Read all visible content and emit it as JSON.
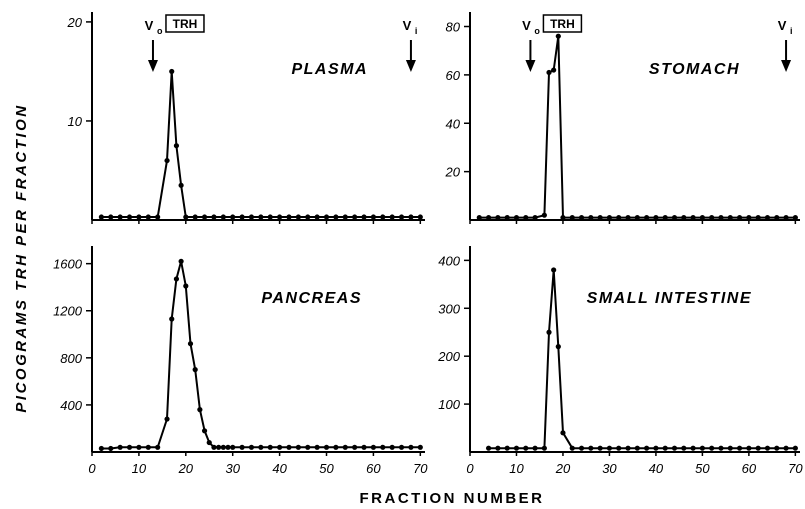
{
  "figure": {
    "ylabel": "PICOGRAMS TRH PER FRACTION",
    "xlabel": "FRACTION NUMBER"
  },
  "markers": {
    "vo_main": "V",
    "vo_sub": "o",
    "vi_main": "V",
    "vi_sub": "i",
    "trh_box": "TRH"
  },
  "chart_data": [
    {
      "type": "line",
      "title": "PLASMA",
      "xlim": [
        0,
        71
      ],
      "ylim": [
        0,
        21
      ],
      "xticks": [],
      "yticks": [
        10,
        20
      ],
      "markers": {
        "vo_x": 13,
        "vi_x": 68,
        "trh_box": true
      },
      "series": [
        {
          "x": [
            2,
            4,
            6,
            8,
            10,
            12,
            14,
            16,
            17,
            18,
            19,
            20,
            22,
            24,
            26,
            28,
            30,
            32,
            34,
            36,
            38,
            40,
            42,
            44,
            46,
            48,
            50,
            52,
            54,
            56,
            58,
            60,
            62,
            64,
            66,
            68,
            70
          ],
          "y": [
            0.3,
            0.3,
            0.3,
            0.3,
            0.3,
            0.3,
            0.3,
            6,
            15,
            7.5,
            3.5,
            0.3,
            0.3,
            0.3,
            0.3,
            0.3,
            0.3,
            0.3,
            0.3,
            0.3,
            0.3,
            0.3,
            0.3,
            0.3,
            0.3,
            0.3,
            0.3,
            0.3,
            0.3,
            0.3,
            0.3,
            0.3,
            0.3,
            0.3,
            0.3,
            0.3,
            0.3
          ]
        }
      ]
    },
    {
      "type": "line",
      "title": "STOMACH",
      "xlim": [
        0,
        71
      ],
      "ylim": [
        0,
        86
      ],
      "xticks": [],
      "yticks": [
        20,
        40,
        60,
        80
      ],
      "markers": {
        "vo_x": 13,
        "vi_x": 68,
        "trh_box": true
      },
      "series": [
        {
          "x": [
            2,
            4,
            6,
            8,
            10,
            12,
            14,
            16,
            17,
            18,
            19,
            20,
            22,
            24,
            26,
            28,
            30,
            32,
            34,
            36,
            38,
            40,
            42,
            44,
            46,
            48,
            50,
            52,
            54,
            56,
            58,
            60,
            62,
            64,
            66,
            68,
            70
          ],
          "y": [
            1,
            1,
            1,
            1,
            1,
            1,
            1,
            2,
            61,
            62,
            76,
            1,
            1,
            1,
            1,
            1,
            1,
            1,
            1,
            1,
            1,
            1,
            1,
            1,
            1,
            1,
            1,
            1,
            1,
            1,
            1,
            1,
            1,
            1,
            1,
            1,
            1
          ]
        }
      ]
    },
    {
      "type": "line",
      "title": "PANCREAS",
      "xlim": [
        0,
        71
      ],
      "ylim": [
        0,
        1750
      ],
      "xticks": [
        0,
        10,
        20,
        30,
        40,
        50,
        60,
        70
      ],
      "yticks": [
        400,
        800,
        1200,
        1600
      ],
      "ytick_labels": [
        "400",
        "800",
        "1200",
        "1600"
      ],
      "markers": {
        "vo_x": null,
        "vi_x": null,
        "trh_box": false
      },
      "series": [
        {
          "x": [
            2,
            4,
            6,
            8,
            10,
            12,
            14,
            16,
            17,
            18,
            19,
            20,
            21,
            22,
            23,
            24,
            25,
            26,
            27,
            28,
            29,
            30,
            32,
            34,
            36,
            38,
            40,
            42,
            44,
            46,
            48,
            50,
            52,
            54,
            56,
            58,
            60,
            62,
            64,
            66,
            68,
            70
          ],
          "y": [
            30,
            30,
            40,
            40,
            40,
            40,
            40,
            280,
            1130,
            1470,
            1620,
            1410,
            920,
            700,
            360,
            180,
            80,
            40,
            40,
            40,
            40,
            40,
            40,
            40,
            40,
            40,
            40,
            40,
            40,
            40,
            40,
            40,
            40,
            40,
            40,
            40,
            40,
            40,
            40,
            40,
            40,
            40
          ]
        }
      ]
    },
    {
      "type": "line",
      "title": "SMALL INTESTINE",
      "xlim": [
        0,
        71
      ],
      "ylim": [
        0,
        430
      ],
      "xticks": [
        0,
        10,
        20,
        30,
        40,
        50,
        60,
        70
      ],
      "yticks": [
        100,
        200,
        300,
        400
      ],
      "markers": {
        "vo_x": null,
        "vi_x": null,
        "trh_box": false
      },
      "series": [
        {
          "x": [
            4,
            6,
            8,
            10,
            12,
            14,
            16,
            17,
            18,
            19,
            20,
            22,
            24,
            26,
            28,
            30,
            32,
            34,
            36,
            38,
            40,
            42,
            44,
            46,
            48,
            50,
            52,
            54,
            56,
            58,
            60,
            62,
            64,
            66,
            68,
            70
          ],
          "y": [
            8,
            8,
            8,
            8,
            8,
            8,
            8,
            250,
            380,
            220,
            40,
            8,
            8,
            8,
            8,
            8,
            8,
            8,
            8,
            8,
            8,
            8,
            8,
            8,
            8,
            8,
            8,
            8,
            8,
            8,
            8,
            8,
            8,
            8,
            8,
            8
          ]
        }
      ]
    }
  ]
}
